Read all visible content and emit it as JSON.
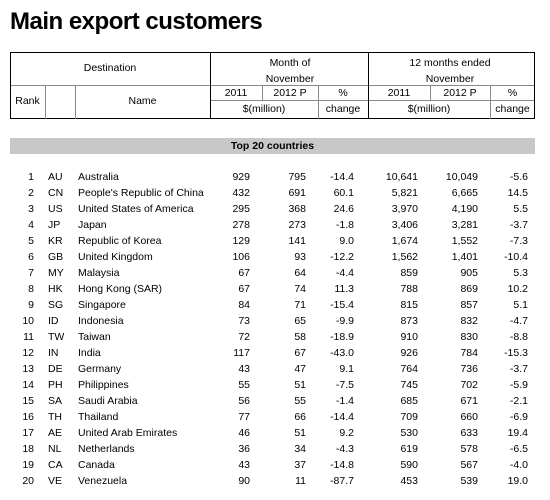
{
  "header": {
    "title": "Main export customers",
    "destination": "Destination",
    "rank": "Rank",
    "name": "Name",
    "month_group": "Month of November",
    "year_group": "12 months ended November",
    "col_2011": "2011",
    "col_2012": "2012 P",
    "col_2011_b": "2011",
    "col_2012_b": "2012 P",
    "unit": "$(million)",
    "unit_b": "$(million)",
    "pct": "%",
    "change": "change",
    "pct_b": "%",
    "change_b": "change"
  },
  "section": "Top 20 countries",
  "table": {
    "rows": [
      [
        "1",
        "AU",
        "Australia",
        "929",
        "795",
        "-14.4",
        "10,641",
        "10,049",
        "-5.6"
      ],
      [
        "2",
        "CN",
        "People's Republic of China",
        "432",
        "691",
        "60.1",
        "5,821",
        "6,665",
        "14.5"
      ],
      [
        "3",
        "US",
        "United States of America",
        "295",
        "368",
        "24.6",
        "3,970",
        "4,190",
        "5.5"
      ],
      [
        "4",
        "JP",
        "Japan",
        "278",
        "273",
        "-1.8",
        "3,406",
        "3,281",
        "-3.7"
      ],
      [
        "5",
        "KR",
        "Republic of Korea",
        "129",
        "141",
        "9.0",
        "1,674",
        "1,552",
        "-7.3"
      ],
      [
        "6",
        "GB",
        "United Kingdom",
        "106",
        "93",
        "-12.2",
        "1,562",
        "1,401",
        "-10.4"
      ],
      [
        "7",
        "MY",
        "Malaysia",
        "67",
        "64",
        "-4.4",
        "859",
        "905",
        "5.3"
      ],
      [
        "8",
        "HK",
        "Hong Kong (SAR)",
        "67",
        "74",
        "11.3",
        "788",
        "869",
        "10.2"
      ],
      [
        "9",
        "SG",
        "Singapore",
        "84",
        "71",
        "-15.4",
        "815",
        "857",
        "5.1"
      ],
      [
        "10",
        "ID",
        "Indonesia",
        "73",
        "65",
        "-9.9",
        "873",
        "832",
        "-4.7"
      ],
      [
        "11",
        "TW",
        "Taiwan",
        "72",
        "58",
        "-18.9",
        "910",
        "830",
        "-8.8"
      ],
      [
        "12",
        "IN",
        "India",
        "117",
        "67",
        "-43.0",
        "926",
        "784",
        "-15.3"
      ],
      [
        "13",
        "DE",
        "Germany",
        "43",
        "47",
        "9.1",
        "764",
        "736",
        "-3.7"
      ],
      [
        "14",
        "PH",
        "Philippines",
        "55",
        "51",
        "-7.5",
        "745",
        "702",
        "-5.9"
      ],
      [
        "15",
        "SA",
        "Saudi Arabia",
        "56",
        "55",
        "-1.4",
        "685",
        "671",
        "-2.1"
      ],
      [
        "16",
        "TH",
        "Thailand",
        "77",
        "66",
        "-14.4",
        "709",
        "660",
        "-6.9"
      ],
      [
        "17",
        "AE",
        "United Arab Emirates",
        "46",
        "51",
        "9.2",
        "530",
        "633",
        "19.4"
      ],
      [
        "18",
        "NL",
        "Netherlands",
        "36",
        "34",
        "-4.3",
        "619",
        "578",
        "-6.5"
      ],
      [
        "19",
        "CA",
        "Canada",
        "43",
        "37",
        "-14.8",
        "590",
        "567",
        "-4.0"
      ],
      [
        "20",
        "VE",
        "Venezuela",
        "90",
        "11",
        "-87.7",
        "453",
        "539",
        "19.0"
      ]
    ]
  }
}
